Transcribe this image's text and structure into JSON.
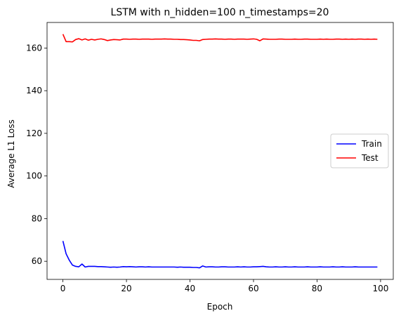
{
  "chart_data": {
    "type": "line",
    "title": "LSTM with n_hidden=100 n_timestamps=20",
    "xlabel": "Epoch",
    "ylabel": "Average L1 Loss",
    "xlim": [
      -5,
      104
    ],
    "ylim": [
      51.5,
      172
    ],
    "xticks": [
      0,
      20,
      40,
      60,
      80,
      100
    ],
    "yticks": [
      60,
      80,
      100,
      120,
      140,
      160
    ],
    "grid": false,
    "legend": "center-right",
    "x": [
      0,
      1,
      2,
      3,
      4,
      5,
      6,
      7,
      8,
      9,
      10,
      11,
      12,
      13,
      14,
      15,
      16,
      17,
      18,
      19,
      20,
      21,
      22,
      23,
      24,
      25,
      26,
      27,
      28,
      29,
      30,
      31,
      32,
      33,
      34,
      35,
      36,
      37,
      38,
      39,
      40,
      41,
      42,
      43,
      44,
      45,
      46,
      47,
      48,
      49,
      50,
      51,
      52,
      53,
      54,
      55,
      56,
      57,
      58,
      59,
      60,
      61,
      62,
      63,
      64,
      65,
      66,
      67,
      68,
      69,
      70,
      71,
      72,
      73,
      74,
      75,
      76,
      77,
      78,
      79,
      80,
      81,
      82,
      83,
      84,
      85,
      86,
      87,
      88,
      89,
      90,
      91,
      92,
      93,
      94,
      95,
      96,
      97,
      98,
      99
    ],
    "series": [
      {
        "name": "Train",
        "color": "#0000ff",
        "values": [
          69.5,
          63.5,
          60.5,
          58.2,
          57.6,
          57.4,
          58.7,
          57.3,
          57.6,
          57.6,
          57.6,
          57.5,
          57.5,
          57.4,
          57.3,
          57.2,
          57.3,
          57.2,
          57.3,
          57.5,
          57.4,
          57.5,
          57.4,
          57.3,
          57.4,
          57.4,
          57.3,
          57.4,
          57.3,
          57.3,
          57.3,
          57.3,
          57.3,
          57.3,
          57.3,
          57.3,
          57.2,
          57.3,
          57.2,
          57.2,
          57.2,
          57.1,
          57.1,
          56.9,
          57.8,
          57.3,
          57.4,
          57.4,
          57.3,
          57.3,
          57.4,
          57.4,
          57.3,
          57.3,
          57.3,
          57.4,
          57.3,
          57.4,
          57.3,
          57.3,
          57.4,
          57.4,
          57.5,
          57.6,
          57.4,
          57.3,
          57.3,
          57.4,
          57.3,
          57.3,
          57.4,
          57.3,
          57.3,
          57.4,
          57.3,
          57.3,
          57.3,
          57.4,
          57.3,
          57.3,
          57.3,
          57.4,
          57.3,
          57.3,
          57.3,
          57.4,
          57.3,
          57.3,
          57.4,
          57.3,
          57.3,
          57.3,
          57.4,
          57.3,
          57.3,
          57.3,
          57.3,
          57.3,
          57.3,
          57.3
        ]
      },
      {
        "name": "Test",
        "color": "#ff0000",
        "values": [
          166.5,
          163.0,
          163.0,
          162.9,
          164.0,
          164.4,
          163.8,
          164.3,
          163.7,
          164.1,
          163.8,
          164.1,
          164.3,
          164.0,
          163.5,
          163.8,
          164.0,
          163.9,
          163.8,
          164.2,
          164.2,
          164.1,
          164.2,
          164.2,
          164.1,
          164.2,
          164.2,
          164.2,
          164.1,
          164.2,
          164.2,
          164.2,
          164.3,
          164.2,
          164.2,
          164.1,
          164.1,
          164.0,
          164.0,
          163.9,
          163.8,
          163.6,
          163.6,
          163.4,
          164.0,
          164.1,
          164.2,
          164.2,
          164.3,
          164.2,
          164.2,
          164.1,
          164.2,
          164.2,
          164.1,
          164.2,
          164.2,
          164.2,
          164.1,
          164.2,
          164.3,
          164.1,
          163.4,
          164.3,
          164.2,
          164.1,
          164.1,
          164.1,
          164.2,
          164.2,
          164.1,
          164.1,
          164.1,
          164.2,
          164.1,
          164.1,
          164.2,
          164.2,
          164.1,
          164.1,
          164.1,
          164.2,
          164.1,
          164.2,
          164.1,
          164.1,
          164.2,
          164.2,
          164.1,
          164.2,
          164.1,
          164.2,
          164.1,
          164.2,
          164.2,
          164.1,
          164.2,
          164.1,
          164.2,
          164.1
        ]
      }
    ]
  }
}
